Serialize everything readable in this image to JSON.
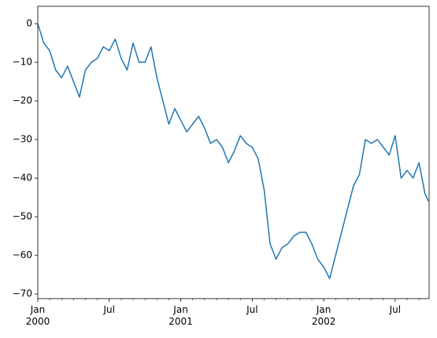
{
  "chart_data": {
    "type": "line",
    "x": [
      0,
      0.5,
      1,
      1.5,
      2,
      2.5,
      3,
      3.5,
      4,
      4.5,
      5,
      5.5,
      6,
      6.5,
      7,
      7.5,
      8,
      8.5,
      9,
      9.5,
      10,
      10.5,
      11,
      11.5,
      12,
      12.5,
      13,
      13.5,
      14,
      14.5,
      15,
      15.5,
      16,
      16.5,
      17,
      17.5,
      18,
      18.5,
      19,
      19.5,
      20,
      20.5,
      21,
      21.5,
      22,
      22.5,
      23,
      23.5,
      24,
      24.5,
      25,
      25.5,
      26,
      26.5,
      27,
      27.5,
      28,
      28.5,
      29,
      29.5,
      30,
      30.5,
      31,
      31.5,
      32,
      32.5,
      32.8
    ],
    "series": [
      {
        "color": "#1f77b4",
        "values": [
          0,
          -5,
          -7,
          -12,
          -14,
          -11,
          -15,
          -19,
          -12,
          -10,
          -9,
          -6,
          -7,
          -4,
          -9,
          -12,
          -5,
          -10,
          -10,
          -6,
          -14,
          -20,
          -26,
          -22,
          -25,
          -28,
          -26,
          -24,
          -27,
          -31,
          -30,
          -32,
          -36,
          -33,
          -29,
          -31,
          -32,
          -35,
          -43,
          -57,
          -61,
          -58,
          -57,
          -55,
          -54,
          -54,
          -57,
          -61,
          -63,
          -66,
          -60,
          -54,
          -48,
          -42,
          -39,
          -30,
          -31,
          -30,
          -32,
          -34,
          -29,
          -40,
          -38,
          -40,
          -36,
          -44,
          -46
        ]
      }
    ],
    "xlim": [
      0,
      32.85
    ],
    "xticks": [
      {
        "value": 0,
        "label": "Jan\n2000"
      },
      {
        "value": 6,
        "label": "Jul"
      },
      {
        "value": 12,
        "label": "Jan\n2001"
      },
      {
        "value": 18,
        "label": "Jul"
      },
      {
        "value": 24,
        "label": "Jan\n2002"
      },
      {
        "value": 30,
        "label": "Jul"
      }
    ],
    "xminorticks": [
      1,
      2,
      3,
      4,
      5,
      7,
      8,
      9,
      10,
      11,
      13,
      14,
      15,
      16,
      17,
      19,
      20,
      21,
      22,
      23,
      25,
      26,
      27,
      28,
      29,
      31,
      32
    ],
    "ylim": [
      -71.2,
      4.5
    ],
    "yticks": [
      {
        "value": -70,
        "label": "−70"
      },
      {
        "value": -60,
        "label": "−60"
      },
      {
        "value": -50,
        "label": "−50"
      },
      {
        "value": -40,
        "label": "−40"
      },
      {
        "value": -30,
        "label": "−30"
      },
      {
        "value": -20,
        "label": "−20"
      },
      {
        "value": -10,
        "label": "−10"
      },
      0
    ]
  }
}
